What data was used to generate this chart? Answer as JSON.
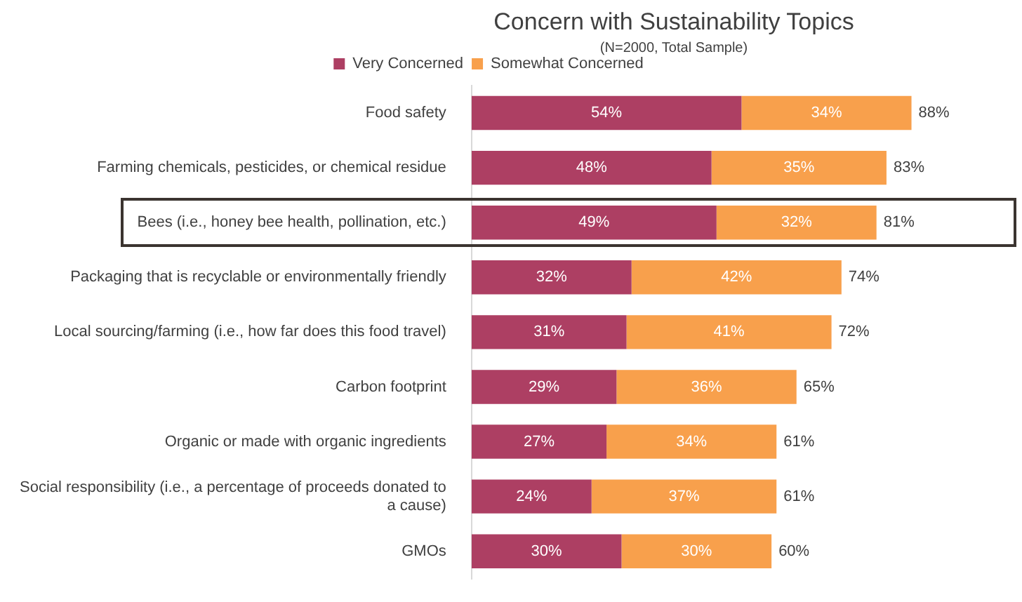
{
  "chart_data": {
    "type": "bar",
    "orientation": "horizontal",
    "stacked": true,
    "title": "Concern with Sustainability Topics",
    "subtitle": "(N=2000, Total Sample)",
    "categories": [
      "Food safety",
      "Farming chemicals, pesticides, or chemical residue",
      "Bees (i.e., honey bee health, pollination, etc.)",
      "Packaging that is recyclable or environmentally friendly",
      "Local sourcing/farming (i.e., how far does this food travel)",
      "Carbon footprint",
      "Organic or made with organic ingredients",
      "Social responsibility (i.e., a percentage of proceeds donated to a cause)",
      "GMOs"
    ],
    "series": [
      {
        "name": "Very Concerned",
        "color": "#ad3f63",
        "values": [
          54,
          48,
          49,
          32,
          31,
          29,
          27,
          24,
          30
        ],
        "value_labels": [
          "54%",
          "48%",
          "49%",
          "32%",
          "31%",
          "29%",
          "27%",
          "24%",
          "30%"
        ]
      },
      {
        "name": "Somewhat Concerned",
        "color": "#f8a04c",
        "values": [
          34,
          35,
          32,
          42,
          41,
          36,
          34,
          37,
          30
        ],
        "value_labels": [
          "34%",
          "35%",
          "32%",
          "42%",
          "41%",
          "36%",
          "34%",
          "37%",
          "30%"
        ]
      }
    ],
    "totals": [
      "88%",
      "83%",
      "81%",
      "74%",
      "72%",
      "65%",
      "61%",
      "61%",
      "60%"
    ],
    "legend": "top",
    "tick_labels": "y"
  }
}
